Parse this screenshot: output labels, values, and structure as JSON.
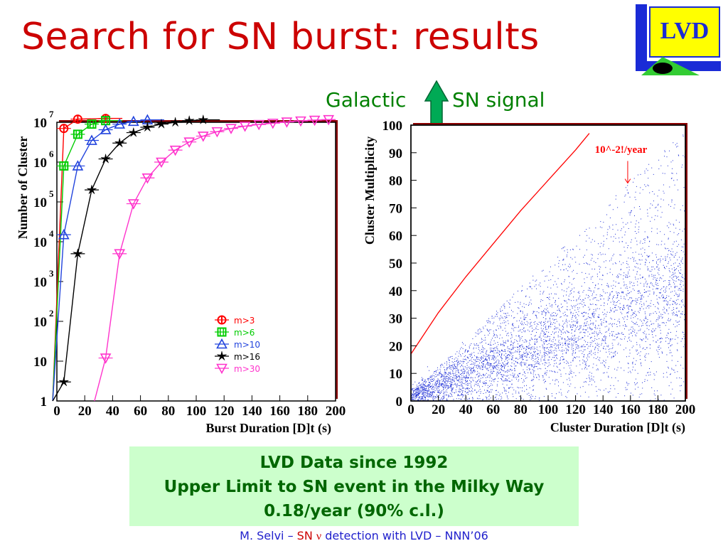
{
  "slide": {
    "title": "Search for SN burst: results",
    "logo_text": "LVD",
    "galactic_left": "Galactic",
    "galactic_right": "SN signal",
    "info_lines": [
      "LVD Data since 1992",
      "Upper Limit to SN event in the Milky Way",
      "0.18/year (90% c.l.)"
    ],
    "footer_prefix": "M. Selvi – ",
    "footer_sn": "SN ",
    "footer_nu": "ν",
    "footer_suffix": " detection with LVD – NNN’06"
  },
  "colors": {
    "title": "#cc0000",
    "green_text": "#008000",
    "info_bg": "#ccffcc",
    "info_text": "#006600",
    "footer": "#1f1fcc",
    "arrow": "#00aa55",
    "frame_shadow": "#8b0000"
  },
  "chart_data": [
    {
      "type": "line",
      "xlabel": "Burst Duration [D]t (s)",
      "ylabel": "Number of Cluster",
      "xlim": [
        0,
        200
      ],
      "ylim": [
        1,
        10000000
      ],
      "log_y": true,
      "x_ticks": [
        "0",
        "20",
        "40",
        "60",
        "80",
        "100",
        "120",
        "140",
        "160",
        "180",
        "200"
      ],
      "y_ticks": [
        {
          "base": "1",
          "exp": ""
        },
        {
          "base": "10",
          "exp": ""
        },
        {
          "base": "10",
          "exp": "2"
        },
        {
          "base": "10",
          "exp": "3"
        },
        {
          "base": "10",
          "exp": "4"
        },
        {
          "base": "10",
          "exp": "5"
        },
        {
          "base": "10",
          "exp": "6"
        },
        {
          "base": "10",
          "exp": "7"
        }
      ],
      "legend_position": "lower-right",
      "series": [
        {
          "name": "m>3",
          "color": "#ff0000",
          "marker": "circle",
          "x": [
            5,
            15,
            35
          ],
          "y": [
            7000000,
            12000000,
            12500000
          ]
        },
        {
          "name": "m>6",
          "color": "#00cc00",
          "marker": "square",
          "x": [
            5,
            15,
            25,
            35
          ],
          "y": [
            800000,
            5000000,
            9000000,
            11000000
          ]
        },
        {
          "name": "m>10",
          "color": "#2244dd",
          "marker": "triangle-up",
          "x": [
            5,
            15,
            25,
            35,
            45,
            55,
            65
          ],
          "y": [
            15000,
            800000,
            3500000,
            6500000,
            9000000,
            10500000,
            11500000
          ]
        },
        {
          "name": "m>16",
          "color": "#000000",
          "marker": "star",
          "x": [
            5,
            15,
            25,
            35,
            45,
            55,
            65,
            75,
            85,
            95,
            105
          ],
          "y": [
            3,
            5000,
            200000,
            1200000,
            3000000,
            5500000,
            7500000,
            9000000,
            10000000,
            11000000,
            11500000
          ]
        },
        {
          "name": "m>30",
          "color": "#ff33cc",
          "marker": "triangle-down",
          "x": [
            35,
            45,
            55,
            65,
            75,
            85,
            95,
            105,
            115,
            125,
            135,
            145,
            155,
            165,
            175,
            185,
            195
          ],
          "y": [
            12,
            5000,
            90000,
            400000,
            1000000,
            2000000,
            3200000,
            4500000,
            5800000,
            7000000,
            8000000,
            8800000,
            9500000,
            10200000,
            10800000,
            11300000,
            11700000
          ]
        }
      ]
    },
    {
      "type": "scatter",
      "xlabel": "Cluster Duration [D]t (s)",
      "ylabel": "Cluster Multiplicity",
      "xlim": [
        0,
        200
      ],
      "ylim": [
        0,
        100
      ],
      "x_ticks": [
        "0",
        "20",
        "40",
        "60",
        "80",
        "100",
        "120",
        "140",
        "160",
        "180",
        "200"
      ],
      "y_ticks": [
        "0",
        "10",
        "20",
        "30",
        "40",
        "50",
        "60",
        "70",
        "80",
        "90",
        "100"
      ],
      "dot_color": "#1a2bd6",
      "threshold_line": {
        "label": "10^-2!/year",
        "color": "#ff0000",
        "x": [
          0,
          20,
          40,
          60,
          80,
          100,
          120,
          130
        ],
        "y": [
          17,
          32,
          45,
          57,
          69,
          80,
          91,
          97
        ]
      }
    }
  ]
}
